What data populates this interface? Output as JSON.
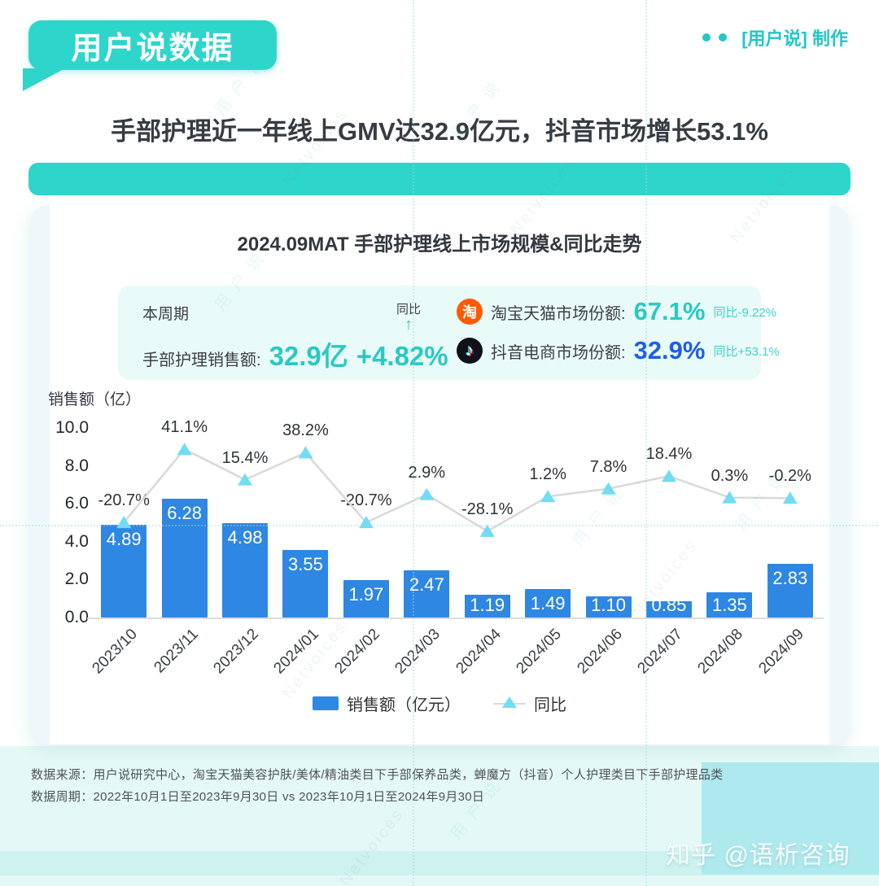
{
  "brand": {
    "logo_text": "用户说数据",
    "credit_text": "[用户说] 制作"
  },
  "headline": "手部护理近一年线上GMV达32.9亿元，抖音市场增长53.1%",
  "card": {
    "title": "2024.09MAT 手部护理线上市场规模&同比走势",
    "stats": {
      "period_label": "本周期",
      "yoy_word": "同比",
      "yoy_arrow": "↑",
      "sales_label": "手部护理销售额:",
      "sales_value": "32.9亿",
      "sales_yoy": "+4.82%",
      "taobao_icon": "淘",
      "taobao_label": "淘宝天猫市场份额:",
      "taobao_value": "67.1%",
      "taobao_yoy": "同比-9.22%",
      "douyin_icon": "♪",
      "douyin_label": "抖音电商市场份额:",
      "douyin_value": "32.9%",
      "douyin_yoy": "同比+53.1%"
    }
  },
  "chart_data": {
    "type": "bar",
    "title": "2024.09MAT 手部护理线上市场规模&同比走势",
    "ylabel": "销售额（亿）",
    "ylim": [
      0,
      10
    ],
    "yticks": [
      "10.0",
      "8.0",
      "6.0",
      "4.0",
      "2.0",
      "0.0"
    ],
    "grid": false,
    "legend_position": "bottom",
    "categories": [
      "2023/10",
      "2023/11",
      "2023/12",
      "2024/01",
      "2024/02",
      "2024/03",
      "2024/04",
      "2024/05",
      "2024/06",
      "2024/07",
      "2024/08",
      "2024/09"
    ],
    "series": [
      {
        "name": "销售额（亿元）",
        "type": "bar",
        "color": "#2E87E3",
        "values": [
          4.89,
          6.28,
          4.98,
          3.55,
          1.97,
          2.47,
          1.19,
          1.49,
          1.1,
          0.85,
          1.35,
          2.83
        ],
        "labels": [
          "4.89",
          "6.28",
          "4.98",
          "3.55",
          "1.97",
          "2.47",
          "1.19",
          "1.49",
          "1.10",
          "0.85",
          "1.35",
          "2.83"
        ]
      },
      {
        "name": "同比",
        "type": "line",
        "unit": "%",
        "line_color": "#D9D9D9",
        "marker": "triangle-up",
        "marker_color": "#70DCF5",
        "values": [
          -20.7,
          41.1,
          15.4,
          38.2,
          -20.7,
          2.9,
          -28.1,
          1.2,
          7.8,
          18.4,
          0.3,
          -0.2
        ],
        "labels": [
          "-20.7%",
          "41.1%",
          "15.4%",
          "38.2%",
          "-20.7%",
          "2.9%",
          "-28.1%",
          "1.2%",
          "7.8%",
          "18.4%",
          "0.3%",
          "-0.2%"
        ]
      }
    ],
    "legend": [
      "销售额（亿元）",
      "同比"
    ]
  },
  "footer": {
    "source_line": "数据来源：用户说研究中心，淘宝天猫美容护肤/美体/精油类目下手部保养品类，蝉魔方（抖音）个人护理类目下手部护理品类",
    "period_line": "数据周期：2022年10月1日至2023年9月30日 vs 2023年10月1日至2024年9月30日",
    "zhihu_watermark": "知乎 @语析咨询"
  },
  "watermark": {
    "cn": "用 户 说",
    "en": "Netvoices"
  },
  "colors": {
    "brand_teal": "#2ED5CB",
    "teal_text": "#2AC9C3",
    "bar_blue": "#2E87E3",
    "douyin_blue": "#1E5FE6",
    "marker_blue": "#70DCF5",
    "line_gray": "#D9D9D9",
    "footer_mint": "#E4F9F5",
    "footer_block": "#AEE9ED"
  }
}
